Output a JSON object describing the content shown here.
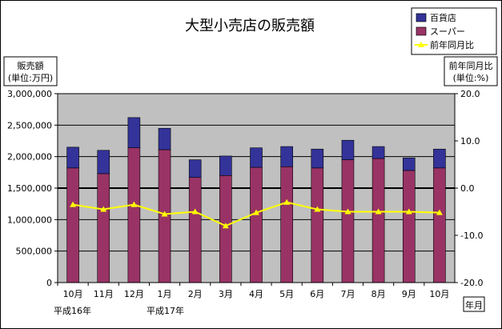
{
  "chart_data": {
    "type": "bar",
    "title": "大型小売店の販売額",
    "categories": [
      "10月",
      "11月",
      "12月",
      "1月",
      "2月",
      "3月",
      "4月",
      "5月",
      "6月",
      "7月",
      "8月",
      "9月",
      "10月"
    ],
    "era_labels": [
      "平成16年",
      "平成17年"
    ],
    "stacked": true,
    "series": [
      {
        "name": "スーパー",
        "kind": "bar",
        "axis": "left",
        "color": "#993366",
        "values": [
          1820000,
          1730000,
          2140000,
          2110000,
          1670000,
          1700000,
          1830000,
          1840000,
          1820000,
          1950000,
          1970000,
          1780000,
          1820000
        ]
      },
      {
        "name": "百貨店",
        "kind": "bar",
        "axis": "left",
        "color": "#333399",
        "values": [
          330000,
          370000,
          480000,
          340000,
          280000,
          310000,
          310000,
          320000,
          300000,
          310000,
          190000,
          200000,
          300000
        ]
      },
      {
        "name": "前年同月比",
        "kind": "line",
        "axis": "right",
        "color": "#ffff00",
        "values": [
          -3.5,
          -4.5,
          -3.5,
          -5.5,
          -5.0,
          -8.0,
          -5.2,
          -3.0,
          -4.5,
          -5.0,
          -5.0,
          -5.0,
          -5.2
        ]
      }
    ],
    "y_left": {
      "label_lines": [
        "販売額",
        "(単位:万円)"
      ],
      "ylim": [
        0,
        3000000
      ],
      "ticks": [
        0,
        500000,
        1000000,
        1500000,
        2000000,
        2500000,
        3000000
      ],
      "tick_labels": [
        "0",
        "500,000",
        "1,000,000",
        "1,500,000",
        "2,000,000",
        "2,500,000",
        "3,000,000"
      ]
    },
    "y_right": {
      "label_lines": [
        "前年同月比",
        "(単位:%)"
      ],
      "ylim": [
        -20,
        20
      ],
      "ticks": [
        -20,
        -10,
        0,
        10,
        20
      ],
      "tick_labels": [
        "-20.0",
        "-10.0",
        "0.0",
        "10.0",
        "20.0"
      ]
    },
    "xlabel": "年月",
    "legend": {
      "position": "top-right",
      "entries": [
        "百貨店",
        "スーパー",
        "前年同月比"
      ]
    },
    "grid": true,
    "plot_bg": "#c0c0c0"
  }
}
